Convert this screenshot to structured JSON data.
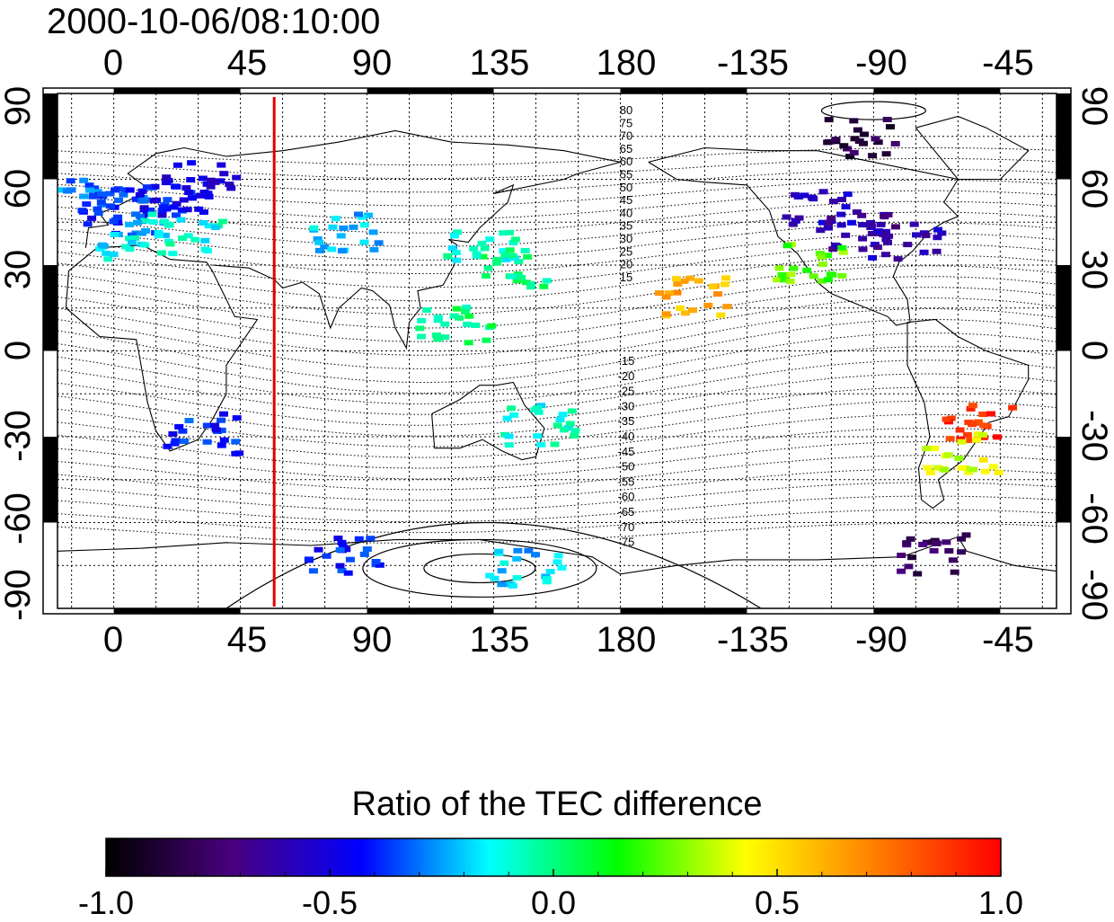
{
  "title": "2000-10-06/08:10:00",
  "map": {
    "x_ticks": [
      "0",
      "45",
      "90",
      "135",
      "180",
      "-135",
      "-90",
      "-45"
    ],
    "x_tick_lons": [
      0,
      45,
      90,
      135,
      180,
      225,
      270,
      315
    ],
    "y_ticks_left": [
      "90",
      "60",
      "30",
      "0",
      "-30",
      "-60",
      "-90"
    ],
    "y_ticks_right": [
      "90",
      "60",
      "30",
      "0",
      "-30",
      "-60",
      "-90"
    ],
    "y_tick_lats": [
      90,
      60,
      30,
      0,
      -30,
      -60,
      -90
    ],
    "lon_range": [
      -20,
      335
    ],
    "lat_range": [
      -90,
      90
    ],
    "marker_longitude": 57,
    "marker_color": "#e00000",
    "contour_labels_north": [
      "80",
      "75",
      "70",
      "65",
      "60",
      "55",
      "50",
      "45",
      "40",
      "35",
      "30",
      "25",
      "20",
      "15"
    ],
    "contour_labels_south": [
      "-15",
      "-20",
      "-25",
      "-30",
      "-35",
      "-40",
      "-45",
      "-50",
      "-55",
      "-60",
      "-65",
      "-70",
      "-75"
    ]
  },
  "colorbar": {
    "title": "Ratio of the TEC difference",
    "range": [
      -1.0,
      1.0
    ],
    "ticks": [
      "-1.0",
      "-0.5",
      "0.0",
      "0.5",
      "1.0"
    ],
    "tick_values": [
      -1.0,
      -0.5,
      0.0,
      0.5,
      1.0
    ],
    "colormap": [
      "#000000",
      "#4a0080",
      "#0000ff",
      "#00ffff",
      "#00ff00",
      "#ffff00",
      "#ff8000",
      "#ff0000"
    ]
  },
  "chart_data": {
    "type": "heatmap",
    "title": "2000-10-06/08:10:00",
    "xlabel": "",
    "ylabel": "",
    "xlim": [
      -20,
      335
    ],
    "ylim": [
      -90,
      90
    ],
    "value_range": [
      -1.0,
      1.0
    ],
    "cells": [
      {
        "lon": -10,
        "lat": 58,
        "value": -0.3
      },
      {
        "lon": 0,
        "lat": 52,
        "value": -0.4
      },
      {
        "lon": 10,
        "lat": 48,
        "value": -0.35
      },
      {
        "lon": 20,
        "lat": 55,
        "value": -0.45
      },
      {
        "lon": 30,
        "lat": 60,
        "value": -0.5
      },
      {
        "lon": 5,
        "lat": 40,
        "value": -0.15
      },
      {
        "lon": 25,
        "lat": 42,
        "value": -0.1
      },
      {
        "lon": 30,
        "lat": -28,
        "value": -0.4
      },
      {
        "lon": 80,
        "lat": 42,
        "value": -0.2
      },
      {
        "lon": 130,
        "lat": 38,
        "value": -0.1
      },
      {
        "lon": 140,
        "lat": 30,
        "value": 0.0
      },
      {
        "lon": 120,
        "lat": 10,
        "value": 0.0
      },
      {
        "lon": 150,
        "lat": -25,
        "value": -0.1
      },
      {
        "lon": 205,
        "lat": 20,
        "value": 0.6
      },
      {
        "lon": 250,
        "lat": 50,
        "value": -0.55
      },
      {
        "lon": 265,
        "lat": 42,
        "value": -0.65
      },
      {
        "lon": 280,
        "lat": 40,
        "value": -0.6
      },
      {
        "lon": 245,
        "lat": 32,
        "value": 0.25
      },
      {
        "lon": 265,
        "lat": 75,
        "value": -0.85
      },
      {
        "lon": 305,
        "lat": -25,
        "value": 0.9
      },
      {
        "lon": 300,
        "lat": -35,
        "value": 0.4
      },
      {
        "lon": 290,
        "lat": -70,
        "value": -0.8
      },
      {
        "lon": 80,
        "lat": -70,
        "value": -0.4
      },
      {
        "lon": 145,
        "lat": -75,
        "value": -0.2
      }
    ]
  }
}
